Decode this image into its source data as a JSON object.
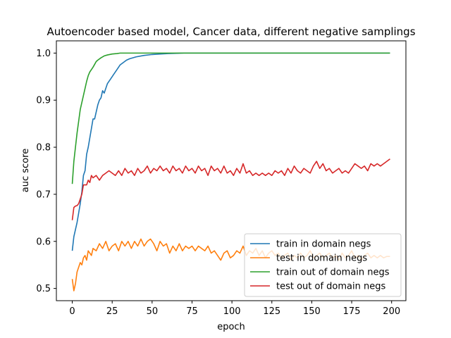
{
  "chart_data": {
    "type": "line",
    "title": "Autoencoder based model, Cancer data, different negative samplings",
    "xlabel": "epoch",
    "ylabel": "auc score",
    "xlim": [
      -9.95,
      208.95
    ],
    "ylim": [
      0.474,
      1.026
    ],
    "xticks": [
      0,
      25,
      50,
      75,
      100,
      125,
      150,
      175,
      200
    ],
    "yticks": [
      0.5,
      0.6,
      0.7,
      0.8,
      0.9,
      1.0
    ],
    "grid": false,
    "legend_position": "lower-right",
    "series": [
      {
        "name": "train in domain negs",
        "color": "#1f77b4",
        "points": [
          [
            0,
            0.58
          ],
          [
            1,
            0.61
          ],
          [
            2,
            0.625
          ],
          [
            3,
            0.64
          ],
          [
            4,
            0.66
          ],
          [
            5,
            0.68
          ],
          [
            6,
            0.705
          ],
          [
            7,
            0.74
          ],
          [
            8,
            0.75
          ],
          [
            9,
            0.785
          ],
          [
            10,
            0.8
          ],
          [
            11,
            0.82
          ],
          [
            12,
            0.84
          ],
          [
            13,
            0.86
          ],
          [
            14,
            0.86
          ],
          [
            15,
            0.875
          ],
          [
            16,
            0.89
          ],
          [
            17,
            0.9
          ],
          [
            18,
            0.905
          ],
          [
            19,
            0.92
          ],
          [
            20,
            0.915
          ],
          [
            22,
            0.935
          ],
          [
            24,
            0.945
          ],
          [
            26,
            0.955
          ],
          [
            28,
            0.965
          ],
          [
            30,
            0.975
          ],
          [
            32,
            0.98
          ],
          [
            34,
            0.985
          ],
          [
            36,
            0.988
          ],
          [
            40,
            0.992
          ],
          [
            45,
            0.995
          ],
          [
            50,
            0.997
          ],
          [
            55,
            0.998
          ],
          [
            60,
            0.999
          ],
          [
            70,
            1.0
          ],
          [
            80,
            1.0
          ],
          [
            100,
            1.0
          ],
          [
            125,
            1.0
          ],
          [
            150,
            1.0
          ],
          [
            175,
            1.0
          ],
          [
            199,
            1.0
          ]
        ]
      },
      {
        "name": "test in domain negs",
        "color": "#ff7f0e",
        "points": [
          [
            0,
            0.52
          ],
          [
            1,
            0.495
          ],
          [
            2,
            0.51
          ],
          [
            3,
            0.535
          ],
          [
            4,
            0.545
          ],
          [
            5,
            0.555
          ],
          [
            6,
            0.55
          ],
          [
            7,
            0.565
          ],
          [
            8,
            0.57
          ],
          [
            9,
            0.56
          ],
          [
            10,
            0.58
          ],
          [
            11,
            0.575
          ],
          [
            12,
            0.57
          ],
          [
            13,
            0.585
          ],
          [
            15,
            0.58
          ],
          [
            17,
            0.595
          ],
          [
            19,
            0.585
          ],
          [
            21,
            0.6
          ],
          [
            23,
            0.58
          ],
          [
            25,
            0.59
          ],
          [
            27,
            0.595
          ],
          [
            29,
            0.58
          ],
          [
            31,
            0.6
          ],
          [
            33,
            0.59
          ],
          [
            35,
            0.6
          ],
          [
            37,
            0.585
          ],
          [
            39,
            0.6
          ],
          [
            41,
            0.59
          ],
          [
            43,
            0.605
          ],
          [
            45,
            0.59
          ],
          [
            47,
            0.6
          ],
          [
            49,
            0.605
          ],
          [
            51,
            0.595
          ],
          [
            53,
            0.58
          ],
          [
            55,
            0.6
          ],
          [
            57,
            0.59
          ],
          [
            59,
            0.595
          ],
          [
            61,
            0.575
          ],
          [
            63,
            0.59
          ],
          [
            65,
            0.58
          ],
          [
            67,
            0.595
          ],
          [
            69,
            0.58
          ],
          [
            71,
            0.59
          ],
          [
            73,
            0.585
          ],
          [
            75,
            0.59
          ],
          [
            77,
            0.58
          ],
          [
            79,
            0.59
          ],
          [
            81,
            0.585
          ],
          [
            83,
            0.58
          ],
          [
            85,
            0.59
          ],
          [
            87,
            0.575
          ],
          [
            89,
            0.58
          ],
          [
            91,
            0.57
          ],
          [
            93,
            0.56
          ],
          [
            95,
            0.575
          ],
          [
            97,
            0.58
          ],
          [
            99,
            0.565
          ],
          [
            101,
            0.57
          ],
          [
            103,
            0.58
          ],
          [
            105,
            0.575
          ],
          [
            107,
            0.59
          ],
          [
            109,
            0.57
          ],
          [
            111,
            0.58
          ],
          [
            113,
            0.575
          ],
          [
            115,
            0.585
          ],
          [
            117,
            0.57
          ],
          [
            119,
            0.58
          ],
          [
            121,
            0.565
          ],
          [
            123,
            0.575
          ],
          [
            125,
            0.58
          ],
          [
            127,
            0.57
          ],
          [
            129,
            0.575
          ],
          [
            131,
            0.565
          ],
          [
            133,
            0.57
          ],
          [
            135,
            0.575
          ],
          [
            137,
            0.56
          ],
          [
            139,
            0.57
          ],
          [
            141,
            0.565
          ],
          [
            143,
            0.575
          ],
          [
            145,
            0.565
          ],
          [
            147,
            0.57
          ],
          [
            149,
            0.58
          ],
          [
            151,
            0.565
          ],
          [
            153,
            0.57
          ],
          [
            155,
            0.575
          ],
          [
            157,
            0.565
          ],
          [
            159,
            0.57
          ],
          [
            161,
            0.575
          ],
          [
            163,
            0.565
          ],
          [
            165,
            0.57
          ],
          [
            167,
            0.56
          ],
          [
            169,
            0.575
          ],
          [
            171,
            0.565
          ],
          [
            173,
            0.57
          ],
          [
            175,
            0.58
          ],
          [
            177,
            0.565
          ],
          [
            179,
            0.57
          ],
          [
            181,
            0.56
          ],
          [
            183,
            0.57
          ],
          [
            185,
            0.575
          ],
          [
            187,
            0.565
          ],
          [
            189,
            0.57
          ],
          [
            191,
            0.565
          ],
          [
            193,
            0.57
          ],
          [
            195,
            0.565
          ],
          [
            197,
            0.568
          ],
          [
            199,
            0.568
          ]
        ]
      },
      {
        "name": "train out of domain negs",
        "color": "#2ca02c",
        "points": [
          [
            0,
            0.722
          ],
          [
            1,
            0.77
          ],
          [
            2,
            0.8
          ],
          [
            3,
            0.83
          ],
          [
            4,
            0.855
          ],
          [
            5,
            0.88
          ],
          [
            6,
            0.895
          ],
          [
            7,
            0.91
          ],
          [
            8,
            0.925
          ],
          [
            9,
            0.94
          ],
          [
            10,
            0.952
          ],
          [
            11,
            0.96
          ],
          [
            12,
            0.965
          ],
          [
            13,
            0.97
          ],
          [
            14,
            0.976
          ],
          [
            15,
            0.982
          ],
          [
            16,
            0.985
          ],
          [
            18,
            0.99
          ],
          [
            20,
            0.994
          ],
          [
            22,
            0.996
          ],
          [
            25,
            0.998
          ],
          [
            28,
            0.999
          ],
          [
            30,
            1.0
          ],
          [
            40,
            1.0
          ],
          [
            60,
            1.0
          ],
          [
            80,
            1.0
          ],
          [
            100,
            1.0
          ],
          [
            125,
            1.0
          ],
          [
            150,
            1.0
          ],
          [
            175,
            1.0
          ],
          [
            199,
            1.0
          ]
        ]
      },
      {
        "name": "test out of domain negs",
        "color": "#d62728",
        "points": [
          [
            0,
            0.645
          ],
          [
            1,
            0.672
          ],
          [
            2,
            0.675
          ],
          [
            3,
            0.676
          ],
          [
            4,
            0.68
          ],
          [
            5,
            0.69
          ],
          [
            6,
            0.7
          ],
          [
            7,
            0.72
          ],
          [
            8,
            0.72
          ],
          [
            9,
            0.72
          ],
          [
            10,
            0.73
          ],
          [
            11,
            0.725
          ],
          [
            12,
            0.74
          ],
          [
            13,
            0.735
          ],
          [
            15,
            0.74
          ],
          [
            17,
            0.73
          ],
          [
            19,
            0.74
          ],
          [
            21,
            0.745
          ],
          [
            23,
            0.75
          ],
          [
            25,
            0.745
          ],
          [
            27,
            0.74
          ],
          [
            29,
            0.75
          ],
          [
            31,
            0.74
          ],
          [
            33,
            0.755
          ],
          [
            35,
            0.745
          ],
          [
            37,
            0.75
          ],
          [
            39,
            0.74
          ],
          [
            41,
            0.755
          ],
          [
            43,
            0.745
          ],
          [
            45,
            0.75
          ],
          [
            47,
            0.76
          ],
          [
            49,
            0.745
          ],
          [
            51,
            0.755
          ],
          [
            53,
            0.75
          ],
          [
            55,
            0.76
          ],
          [
            57,
            0.75
          ],
          [
            59,
            0.755
          ],
          [
            61,
            0.745
          ],
          [
            63,
            0.76
          ],
          [
            65,
            0.75
          ],
          [
            67,
            0.755
          ],
          [
            69,
            0.745
          ],
          [
            71,
            0.76
          ],
          [
            73,
            0.75
          ],
          [
            75,
            0.755
          ],
          [
            77,
            0.745
          ],
          [
            79,
            0.76
          ],
          [
            81,
            0.75
          ],
          [
            83,
            0.755
          ],
          [
            85,
            0.74
          ],
          [
            87,
            0.76
          ],
          [
            89,
            0.75
          ],
          [
            91,
            0.755
          ],
          [
            93,
            0.745
          ],
          [
            95,
            0.76
          ],
          [
            97,
            0.745
          ],
          [
            99,
            0.75
          ],
          [
            101,
            0.74
          ],
          [
            103,
            0.755
          ],
          [
            105,
            0.745
          ],
          [
            107,
            0.765
          ],
          [
            109,
            0.745
          ],
          [
            111,
            0.75
          ],
          [
            113,
            0.74
          ],
          [
            115,
            0.745
          ],
          [
            117,
            0.74
          ],
          [
            119,
            0.745
          ],
          [
            121,
            0.74
          ],
          [
            123,
            0.745
          ],
          [
            125,
            0.74
          ],
          [
            127,
            0.75
          ],
          [
            129,
            0.745
          ],
          [
            131,
            0.75
          ],
          [
            133,
            0.74
          ],
          [
            135,
            0.755
          ],
          [
            137,
            0.745
          ],
          [
            139,
            0.76
          ],
          [
            141,
            0.75
          ],
          [
            143,
            0.745
          ],
          [
            145,
            0.755
          ],
          [
            147,
            0.75
          ],
          [
            149,
            0.745
          ],
          [
            151,
            0.76
          ],
          [
            153,
            0.77
          ],
          [
            155,
            0.755
          ],
          [
            157,
            0.765
          ],
          [
            159,
            0.75
          ],
          [
            161,
            0.755
          ],
          [
            163,
            0.745
          ],
          [
            165,
            0.75
          ],
          [
            167,
            0.755
          ],
          [
            169,
            0.745
          ],
          [
            171,
            0.75
          ],
          [
            173,
            0.745
          ],
          [
            175,
            0.755
          ],
          [
            177,
            0.765
          ],
          [
            179,
            0.76
          ],
          [
            181,
            0.755
          ],
          [
            183,
            0.76
          ],
          [
            185,
            0.75
          ],
          [
            187,
            0.765
          ],
          [
            189,
            0.76
          ],
          [
            191,
            0.765
          ],
          [
            193,
            0.76
          ],
          [
            195,
            0.765
          ],
          [
            197,
            0.77
          ],
          [
            199,
            0.775
          ]
        ]
      }
    ]
  }
}
